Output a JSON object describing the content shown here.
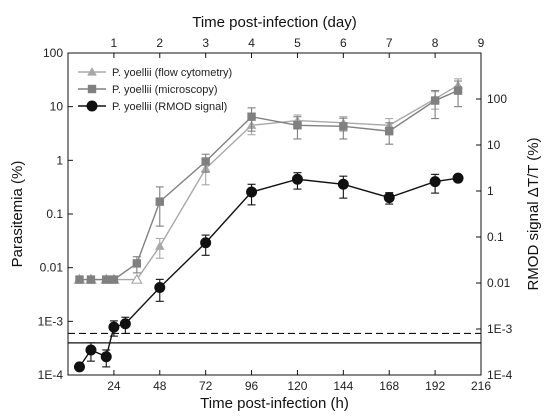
{
  "chart_data": {
    "type": "scatter",
    "xlabel": "Time post-infection (h)",
    "x2label": "Time post-infection (day)",
    "ylabel": "Parasitemia (%)",
    "y2label": "RMOD signal ΔT/T (%)",
    "x_ticks": [
      "24",
      "48",
      "72",
      "96",
      "120",
      "144",
      "168",
      "192",
      "216"
    ],
    "x2_ticks": [
      "1",
      "2",
      "3",
      "4",
      "5",
      "6",
      "7",
      "8",
      "9"
    ],
    "y_ticks": [
      "1E-4",
      "1E-3",
      "0.01",
      "0.1",
      "1",
      "10",
      "100"
    ],
    "y2_ticks": [
      "1E-4",
      "1E-3",
      "0.01",
      "0.1",
      "1",
      "10",
      "100"
    ],
    "xlim": [
      0,
      216
    ],
    "x2lim": [
      0,
      9
    ],
    "ylim": [
      0.0001,
      100
    ],
    "y2lim": [
      0.0001,
      1000
    ],
    "y_scale": "log",
    "y2_scale": "log",
    "legend_position": "top-left",
    "series": [
      {
        "name": "P. yoellii (flow cytometry)",
        "color": "#a8a8a8",
        "marker": "triangle",
        "axis": "left",
        "x": [
          6,
          12,
          20,
          24,
          36,
          48,
          72,
          96,
          120,
          144,
          168,
          192,
          204
        ],
        "y": [
          0.006,
          0.006,
          0.006,
          0.006,
          0.006,
          0.025,
          0.7,
          4.5,
          5.5,
          5,
          4.5,
          14,
          25
        ],
        "y_err": [
          0,
          0,
          0,
          0,
          0,
          0.01,
          0.35,
          1.5,
          1.5,
          1.5,
          1.5,
          5,
          8
        ]
      },
      {
        "name": "P. yoellii (microscopy)",
        "color": "#808080",
        "marker": "square",
        "axis": "left",
        "x": [
          6,
          12,
          20,
          24,
          36,
          48,
          72,
          96,
          120,
          144,
          168,
          192,
          204
        ],
        "y": [
          0.006,
          0.006,
          0.006,
          0.006,
          0.012,
          0.17,
          0.95,
          6.5,
          4.5,
          4.3,
          3.5,
          13,
          20
        ],
        "y_err": [
          0,
          0,
          0,
          0,
          0.004,
          0.15,
          0.35,
          3,
          2,
          1.8,
          1.5,
          7,
          10
        ]
      },
      {
        "name": "P. yoellii (RMOD signal)",
        "color": "#111111",
        "marker": "circle",
        "axis": "right",
        "x": [
          6,
          12,
          20,
          24,
          30,
          48,
          72,
          96,
          120,
          144,
          168,
          192,
          204
        ],
        "y": [
          0.00015,
          0.00035,
          0.00025,
          0.0011,
          0.0013,
          0.008,
          0.075,
          0.95,
          1.8,
          1.4,
          0.72,
          1.6,
          1.9
        ],
        "y_err": [
          0,
          0.00015,
          0.0001,
          0.0004,
          0.0005,
          0.004,
          0.035,
          0.45,
          0.7,
          0.7,
          0.2,
          0.7,
          0.3
        ]
      }
    ],
    "reference_lines": [
      {
        "style": "dashed",
        "axis": "right",
        "y": 0.0008
      },
      {
        "style": "solid",
        "axis": "right",
        "y": 0.0005
      }
    ]
  }
}
